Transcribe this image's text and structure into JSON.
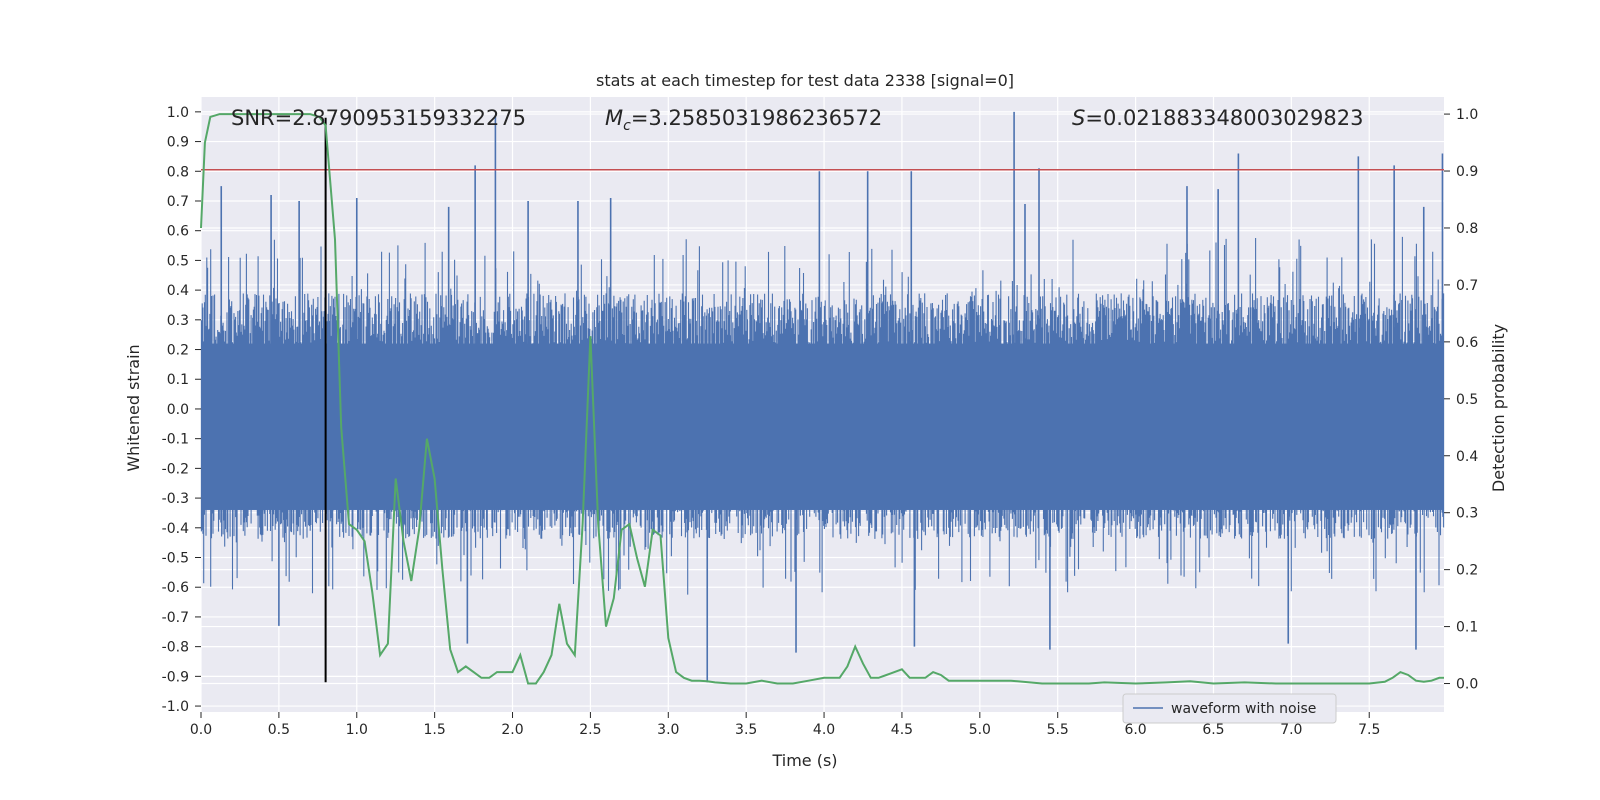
{
  "chart_data": {
    "type": "line",
    "title": "stats at each timestep for test data 2338 [signal=0]",
    "xlabel": "Time (s)",
    "ylabel": "Whitened strain",
    "y2label": "Detection probability",
    "xlim": [
      0.0,
      7.98
    ],
    "ylim": [
      -1.02,
      1.05
    ],
    "y2lim": [
      -0.05,
      1.03
    ],
    "xticks": [
      "0.0",
      "0.5",
      "1.0",
      "1.5",
      "2.0",
      "2.5",
      "3.0",
      "3.5",
      "4.0",
      "4.5",
      "5.0",
      "5.5",
      "6.0",
      "6.5",
      "7.0",
      "7.5"
    ],
    "yticks": [
      "1.0",
      "0.9",
      "0.8",
      "0.7",
      "0.6",
      "0.5",
      "0.4",
      "0.3",
      "0.2",
      "0.1",
      "0.0",
      "-0.1",
      "-0.2",
      "-0.3",
      "-0.4",
      "-0.5",
      "-0.6",
      "-0.7",
      "-0.8",
      "-0.9",
      "-1.0"
    ],
    "y2ticks": [
      "1.0",
      "0.9",
      "0.8",
      "0.7",
      "0.6",
      "0.5",
      "0.4",
      "0.3",
      "0.2",
      "0.1",
      "0.0"
    ],
    "annotations": {
      "snr": "SNR=2.8790953159332275",
      "mc_symbol": "M",
      "mc_sub": "c",
      "mc_value": "=3.2585031986236572",
      "s_symbol": "S",
      "s_value": "=0.021883348003029823"
    },
    "threshold": {
      "y": 0.805,
      "color": "#c44e52"
    },
    "marker_time": 0.8,
    "waveform_spikes": [
      {
        "t": 0.13,
        "v": 0.75
      },
      {
        "t": 0.45,
        "v": 0.72
      },
      {
        "t": 0.63,
        "v": 0.7
      },
      {
        "t": 0.5,
        "v": -0.73
      },
      {
        "t": 1.0,
        "v": 0.71
      },
      {
        "t": 1.59,
        "v": 0.68
      },
      {
        "t": 1.71,
        "v": -0.79
      },
      {
        "t": 1.76,
        "v": 0.82
      },
      {
        "t": 1.89,
        "v": 0.99
      },
      {
        "t": 2.1,
        "v": 0.7
      },
      {
        "t": 2.42,
        "v": 0.7
      },
      {
        "t": 2.63,
        "v": 0.71
      },
      {
        "t": 3.25,
        "v": -0.92
      },
      {
        "t": 3.82,
        "v": -0.82
      },
      {
        "t": 3.97,
        "v": 0.8
      },
      {
        "t": 4.28,
        "v": 0.8
      },
      {
        "t": 4.56,
        "v": 0.8
      },
      {
        "t": 4.58,
        "v": -0.8
      },
      {
        "t": 5.22,
        "v": 1.0
      },
      {
        "t": 5.29,
        "v": 0.69
      },
      {
        "t": 5.38,
        "v": 0.81
      },
      {
        "t": 5.45,
        "v": -0.81
      },
      {
        "t": 6.33,
        "v": 0.75
      },
      {
        "t": 6.53,
        "v": 0.74
      },
      {
        "t": 6.66,
        "v": 0.86
      },
      {
        "t": 6.98,
        "v": -0.79
      },
      {
        "t": 7.43,
        "v": 0.85
      },
      {
        "t": 7.66,
        "v": 0.82
      },
      {
        "t": 7.8,
        "v": -0.81
      },
      {
        "t": 7.85,
        "v": 0.68
      },
      {
        "t": 7.97,
        "v": 0.86
      }
    ],
    "series": [
      {
        "name": "waveform with noise",
        "color": "#4c72b0",
        "noise_envelope": {
          "upper": 0.4,
          "lower": -0.45,
          "sample_count": 1600
        }
      },
      {
        "name": "detection probability",
        "color": "#55a868",
        "x": [
          0.0,
          0.025,
          0.06,
          0.12,
          0.2,
          0.3,
          0.4,
          0.5,
          0.6,
          0.7,
          0.76,
          0.8,
          0.86,
          0.9,
          0.95,
          1.0,
          1.05,
          1.1,
          1.15,
          1.2,
          1.25,
          1.3,
          1.35,
          1.4,
          1.45,
          1.5,
          1.55,
          1.6,
          1.65,
          1.7,
          1.75,
          1.8,
          1.85,
          1.9,
          1.95,
          2.0,
          2.05,
          2.1,
          2.15,
          2.2,
          2.25,
          2.3,
          2.35,
          2.4,
          2.45,
          2.5,
          2.55,
          2.6,
          2.65,
          2.7,
          2.75,
          2.8,
          2.85,
          2.9,
          2.95,
          3.0,
          3.05,
          3.1,
          3.15,
          3.2,
          3.25,
          3.3,
          3.4,
          3.5,
          3.6,
          3.7,
          3.8,
          3.9,
          4.0,
          4.1,
          4.15,
          4.2,
          4.25,
          4.3,
          4.35,
          4.4,
          4.5,
          4.55,
          4.6,
          4.65,
          4.7,
          4.75,
          4.8,
          4.9,
          5.0,
          5.2,
          5.4,
          5.5,
          5.7,
          5.8,
          6.0,
          6.2,
          6.35,
          6.5,
          6.7,
          6.9,
          7.1,
          7.3,
          7.5,
          7.6,
          7.65,
          7.7,
          7.75,
          7.8,
          7.85,
          7.9,
          7.95,
          7.98
        ],
        "y": [
          0.8,
          0.95,
          0.995,
          1.0,
          1.0,
          1.0,
          1.0,
          1.0,
          1.0,
          1.0,
          0.995,
          0.98,
          0.78,
          0.45,
          0.28,
          0.27,
          0.25,
          0.16,
          0.05,
          0.07,
          0.36,
          0.25,
          0.18,
          0.27,
          0.43,
          0.36,
          0.2,
          0.06,
          0.02,
          0.03,
          0.02,
          0.01,
          0.01,
          0.02,
          0.02,
          0.02,
          0.05,
          0.0,
          0.0,
          0.02,
          0.05,
          0.14,
          0.07,
          0.05,
          0.28,
          0.61,
          0.28,
          0.1,
          0.15,
          0.27,
          0.28,
          0.22,
          0.17,
          0.27,
          0.26,
          0.08,
          0.02,
          0.01,
          0.005,
          0.005,
          0.004,
          0.002,
          0.0,
          0.0,
          0.005,
          0.0,
          0.0,
          0.005,
          0.01,
          0.01,
          0.03,
          0.065,
          0.035,
          0.01,
          0.01,
          0.015,
          0.025,
          0.01,
          0.01,
          0.01,
          0.02,
          0.015,
          0.005,
          0.005,
          0.005,
          0.005,
          0.0,
          0.0,
          0.0,
          0.002,
          0.0,
          0.002,
          0.004,
          0.0,
          0.002,
          0.0,
          0.0,
          0.0,
          0.0,
          0.003,
          0.01,
          0.02,
          0.015,
          0.005,
          0.003,
          0.005,
          0.01,
          0.01
        ]
      }
    ],
    "legend": {
      "label": "waveform with noise",
      "placement": "bottom-right"
    },
    "grid": true
  }
}
